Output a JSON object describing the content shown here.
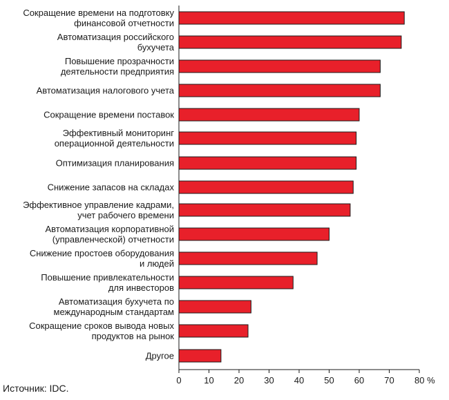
{
  "chart_data": {
    "type": "bar",
    "orientation": "horizontal",
    "bar_color": "#e8202a",
    "bar_stroke": "#1a1a1a",
    "categories": [
      [
        "Сокращение времени на подготовку",
        "финансовой отчетности"
      ],
      [
        "Автоматизация российского",
        "бухучета"
      ],
      [
        "Повышение прозрачности",
        "деятельности предприятия"
      ],
      [
        "Автоматизация налогового учета"
      ],
      [
        "Сокращение времени поставок"
      ],
      [
        "Эффективный мониторинг",
        "операционной деятельности"
      ],
      [
        "Оптимизация планирования"
      ],
      [
        "Снижение запасов на складах"
      ],
      [
        "Эффективное управление кадрами,",
        "учет рабочего времени"
      ],
      [
        "Автоматизация корпоративной",
        "(управленческой) отчетности"
      ],
      [
        "Снижение простоев оборудования",
        "и людей"
      ],
      [
        "Повышение привлекательности",
        "для инвесторов"
      ],
      [
        "Автоматизация бухучета по",
        "международным стандартам"
      ],
      [
        "Сокращение сроков вывода новых",
        "продуктов на рынок"
      ],
      [
        "Другое"
      ]
    ],
    "values": [
      75,
      74,
      67,
      67,
      60,
      59,
      59,
      58,
      57,
      50,
      46,
      38,
      24,
      23,
      14
    ],
    "xlim": [
      0,
      80
    ],
    "x_ticks": [
      "0",
      "10",
      "20",
      "30",
      "40",
      "50",
      "60",
      "70",
      "80 %"
    ]
  },
  "source": "Источник: IDC."
}
